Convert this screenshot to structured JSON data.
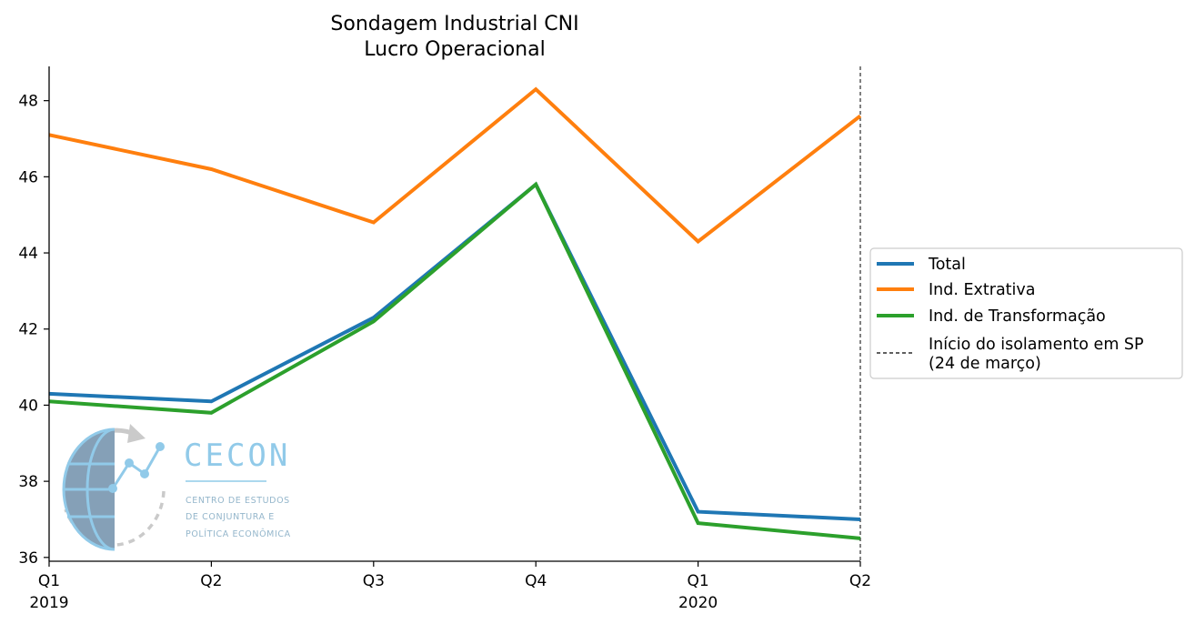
{
  "chart_data": {
    "type": "line",
    "title": [
      "Sondagem Industrial CNI",
      "Lucro Operacional"
    ],
    "x": [
      "2019-Q1",
      "2019-Q2",
      "2019-Q3",
      "2019-Q4",
      "2020-Q1",
      "2020-Q2"
    ],
    "x_tick_labels": [
      [
        "Q1",
        "2019"
      ],
      [
        "Q2",
        ""
      ],
      [
        "Q3",
        ""
      ],
      [
        "Q4",
        ""
      ],
      [
        "Q1",
        "2020"
      ],
      [
        "Q2",
        ""
      ]
    ],
    "y_ticks": [
      36,
      38,
      40,
      42,
      44,
      46,
      48
    ],
    "ylim": [
      35.9,
      48.9
    ],
    "series": [
      {
        "name": "Total",
        "color": "#1f77b4",
        "values": [
          40.3,
          40.1,
          42.3,
          45.8,
          37.2,
          37.0
        ]
      },
      {
        "name": "Ind. Extrativa",
        "color": "#ff7f0e",
        "values": [
          47.1,
          46.2,
          44.8,
          48.3,
          44.3,
          47.6
        ]
      },
      {
        "name": "Ind. de Transformação",
        "color": "#2ca02c",
        "values": [
          40.1,
          39.8,
          42.2,
          45.8,
          36.9,
          36.5
        ]
      }
    ],
    "vline": {
      "x": "2020-Q2",
      "style": "dashed",
      "color": "#000000",
      "label": [
        "Início do isolamento em SP",
        "(24 de março)"
      ]
    },
    "legend_position": "center-right, outside plot",
    "grid": false
  },
  "watermark": {
    "title": "CECON",
    "subtitle": [
      "CENTRO DE ESTUDOS",
      "DE CONJUNTURA E",
      "POLÍTICA ECONÔMICA"
    ]
  }
}
